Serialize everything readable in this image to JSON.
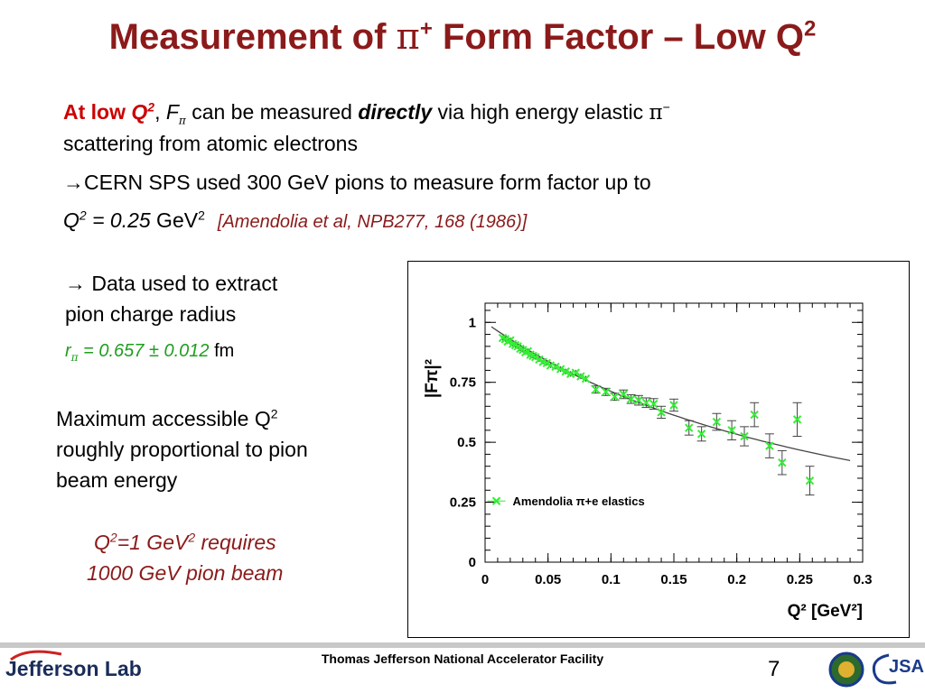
{
  "slide": {
    "title_main": "Measurement of ",
    "title_pi": "π",
    "title_plus": "+",
    "title_rest": " Form Factor – Low Q",
    "title_sup": "2"
  },
  "intro": {
    "at_low": "At low ",
    "q": "Q",
    "q_sup": "2",
    "comma": ", ",
    "f": "F",
    "f_sub": "π",
    "text1": " can be measured ",
    "directly": "directly",
    "text2": " via high energy elastic ",
    "pi_minus": "π",
    "pi_minus_sup": "−",
    "line2": "scattering from atomic electrons"
  },
  "cern": {
    "arrow": "→",
    "text": "CERN SPS used 300 GeV pions to measure form factor up to",
    "q": "Q",
    "q_sup": "2",
    "eq": " = 0.25",
    "unit": " GeV",
    "unit_sup": "2",
    "ref": "[Amendolia et al, NPB277, 168 (1986)]"
  },
  "radius": {
    "arrow": "→",
    "line1": " Data used to extract",
    "line2": "pion charge radius",
    "r": "r",
    "r_sub": "π",
    "value": " = 0.657 ± 0.012",
    "unit": " fm"
  },
  "energy": {
    "line1": "Maximum accessible Q",
    "line1_sup": "2",
    "line2": "roughly proportional to pion",
    "line3": "beam energy",
    "req_q": "Q",
    "req_sup1": "2",
    "req_mid": "=1 GeV",
    "req_sup2": "2",
    "req_end": " requires",
    "req_line2": "1000 GeV pion beam"
  },
  "chart_data": {
    "type": "scatter",
    "xlabel": "Q² [GeV²]",
    "ylabel": "|Fπ|²",
    "xlim": [
      0,
      0.3
    ],
    "ylim": [
      0,
      1.08
    ],
    "xticks": [
      "0",
      "0.05",
      "0.1",
      "0.15",
      "0.2",
      "0.25",
      "0.3"
    ],
    "yticks": [
      "0",
      "0.25",
      "0.5",
      "0.75",
      "1"
    ],
    "legend": "Amendolia π+e elastics",
    "legend_position": "bottom-left",
    "marker_color": "#33ee33",
    "series": [
      {
        "name": "Amendolia π+e elastics",
        "points": [
          [
            0.014,
            0.935,
            0.01
          ],
          [
            0.016,
            0.93,
            0.01
          ],
          [
            0.018,
            0.92,
            0.01
          ],
          [
            0.02,
            0.925,
            0.01
          ],
          [
            0.022,
            0.91,
            0.01
          ],
          [
            0.024,
            0.905,
            0.01
          ],
          [
            0.026,
            0.9,
            0.01
          ],
          [
            0.028,
            0.89,
            0.01
          ],
          [
            0.03,
            0.885,
            0.01
          ],
          [
            0.032,
            0.875,
            0.01
          ],
          [
            0.034,
            0.88,
            0.01
          ],
          [
            0.036,
            0.865,
            0.01
          ],
          [
            0.038,
            0.86,
            0.01
          ],
          [
            0.04,
            0.855,
            0.01
          ],
          [
            0.043,
            0.845,
            0.01
          ],
          [
            0.046,
            0.835,
            0.01
          ],
          [
            0.049,
            0.83,
            0.01
          ],
          [
            0.052,
            0.82,
            0.01
          ],
          [
            0.056,
            0.815,
            0.012
          ],
          [
            0.06,
            0.805,
            0.012
          ],
          [
            0.064,
            0.795,
            0.012
          ],
          [
            0.068,
            0.785,
            0.012
          ],
          [
            0.072,
            0.79,
            0.012
          ],
          [
            0.076,
            0.775,
            0.012
          ],
          [
            0.08,
            0.765,
            0.012
          ],
          [
            0.088,
            0.72,
            0.015
          ],
          [
            0.096,
            0.71,
            0.015
          ],
          [
            0.103,
            0.69,
            0.015
          ],
          [
            0.11,
            0.7,
            0.018
          ],
          [
            0.116,
            0.68,
            0.018
          ],
          [
            0.122,
            0.675,
            0.02
          ],
          [
            0.128,
            0.665,
            0.02
          ],
          [
            0.134,
            0.66,
            0.022
          ],
          [
            0.14,
            0.625,
            0.025
          ],
          [
            0.15,
            0.655,
            0.025
          ],
          [
            0.162,
            0.56,
            0.03
          ],
          [
            0.172,
            0.535,
            0.03
          ],
          [
            0.184,
            0.585,
            0.035
          ],
          [
            0.196,
            0.55,
            0.04
          ],
          [
            0.206,
            0.525,
            0.04
          ],
          [
            0.214,
            0.615,
            0.05
          ],
          [
            0.226,
            0.485,
            0.05
          ],
          [
            0.236,
            0.415,
            0.05
          ],
          [
            0.248,
            0.595,
            0.07
          ],
          [
            0.258,
            0.34,
            0.06
          ]
        ]
      }
    ]
  },
  "footer": {
    "org": "Thomas Jefferson National Accelerator Facility",
    "page": "7",
    "logo": "Jefferson Lab",
    "jsa": "JSA"
  }
}
